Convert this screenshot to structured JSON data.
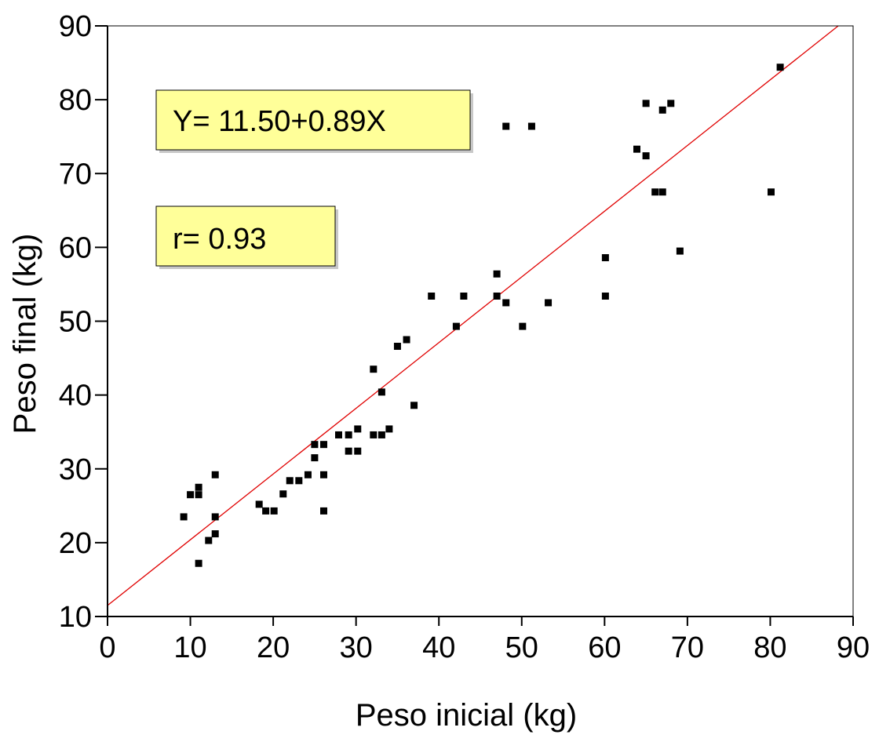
{
  "chart_data": {
    "type": "scatter",
    "xlabel": "Peso inicial (kg)",
    "ylabel": "Peso final (kg)",
    "xlim": [
      0,
      90
    ],
    "ylim": [
      10,
      90
    ],
    "xticks": [
      "0",
      "10",
      "20",
      "30",
      "40",
      "50",
      "60",
      "70",
      "80",
      "90"
    ],
    "yticks": [
      "10",
      "20",
      "30",
      "40",
      "50",
      "60",
      "70",
      "80",
      "90"
    ],
    "grid": false,
    "regression": {
      "intercept": 11.5,
      "slope": 0.89,
      "color": "#e00000"
    },
    "annotations": [
      {
        "text": "Y= 11.50+0.89X",
        "fill": "#ffff99"
      },
      {
        "text": "r= 0.93",
        "fill": "#ffff99"
      }
    ],
    "points": [
      [
        9.2,
        23.5
      ],
      [
        10,
        26.5
      ],
      [
        11,
        26.5
      ],
      [
        11,
        27.5
      ],
      [
        11,
        17.2
      ],
      [
        12.2,
        20.3
      ],
      [
        13,
        29.2
      ],
      [
        13,
        23.5
      ],
      [
        13,
        21.2
      ],
      [
        18.3,
        25.2
      ],
      [
        19.1,
        24.3
      ],
      [
        20.1,
        24.3
      ],
      [
        21.2,
        26.6
      ],
      [
        22,
        28.4
      ],
      [
        23.1,
        28.4
      ],
      [
        24.2,
        29.2
      ],
      [
        25,
        33.3
      ],
      [
        25,
        31.5
      ],
      [
        26.1,
        33.3
      ],
      [
        26.1,
        29.2
      ],
      [
        26.1,
        24.3
      ],
      [
        27.9,
        34.6
      ],
      [
        29.1,
        34.6
      ],
      [
        29.1,
        32.4
      ],
      [
        30.2,
        35.4
      ],
      [
        30.2,
        32.4
      ],
      [
        32.1,
        43.5
      ],
      [
        32.1,
        34.6
      ],
      [
        33.1,
        40.4
      ],
      [
        33.1,
        34.6
      ],
      [
        34,
        35.4
      ],
      [
        35,
        46.6
      ],
      [
        36.1,
        47.5
      ],
      [
        37,
        38.6
      ],
      [
        39.1,
        53.4
      ],
      [
        42.1,
        49.3
      ],
      [
        43,
        53.4
      ],
      [
        47,
        56.4
      ],
      [
        47,
        53.4
      ],
      [
        48.1,
        52.5
      ],
      [
        48.1,
        76.4
      ],
      [
        50.1,
        49.3
      ],
      [
        51.2,
        76.4
      ],
      [
        53.2,
        52.5
      ],
      [
        60.1,
        58.6
      ],
      [
        60.1,
        53.4
      ],
      [
        63.9,
        73.3
      ],
      [
        65,
        79.5
      ],
      [
        65,
        72.4
      ],
      [
        66.1,
        67.5
      ],
      [
        67,
        67.5
      ],
      [
        67,
        78.6
      ],
      [
        68,
        79.5
      ],
      [
        69.1,
        59.5
      ],
      [
        80.1,
        67.5
      ],
      [
        81.2,
        84.4
      ]
    ]
  }
}
